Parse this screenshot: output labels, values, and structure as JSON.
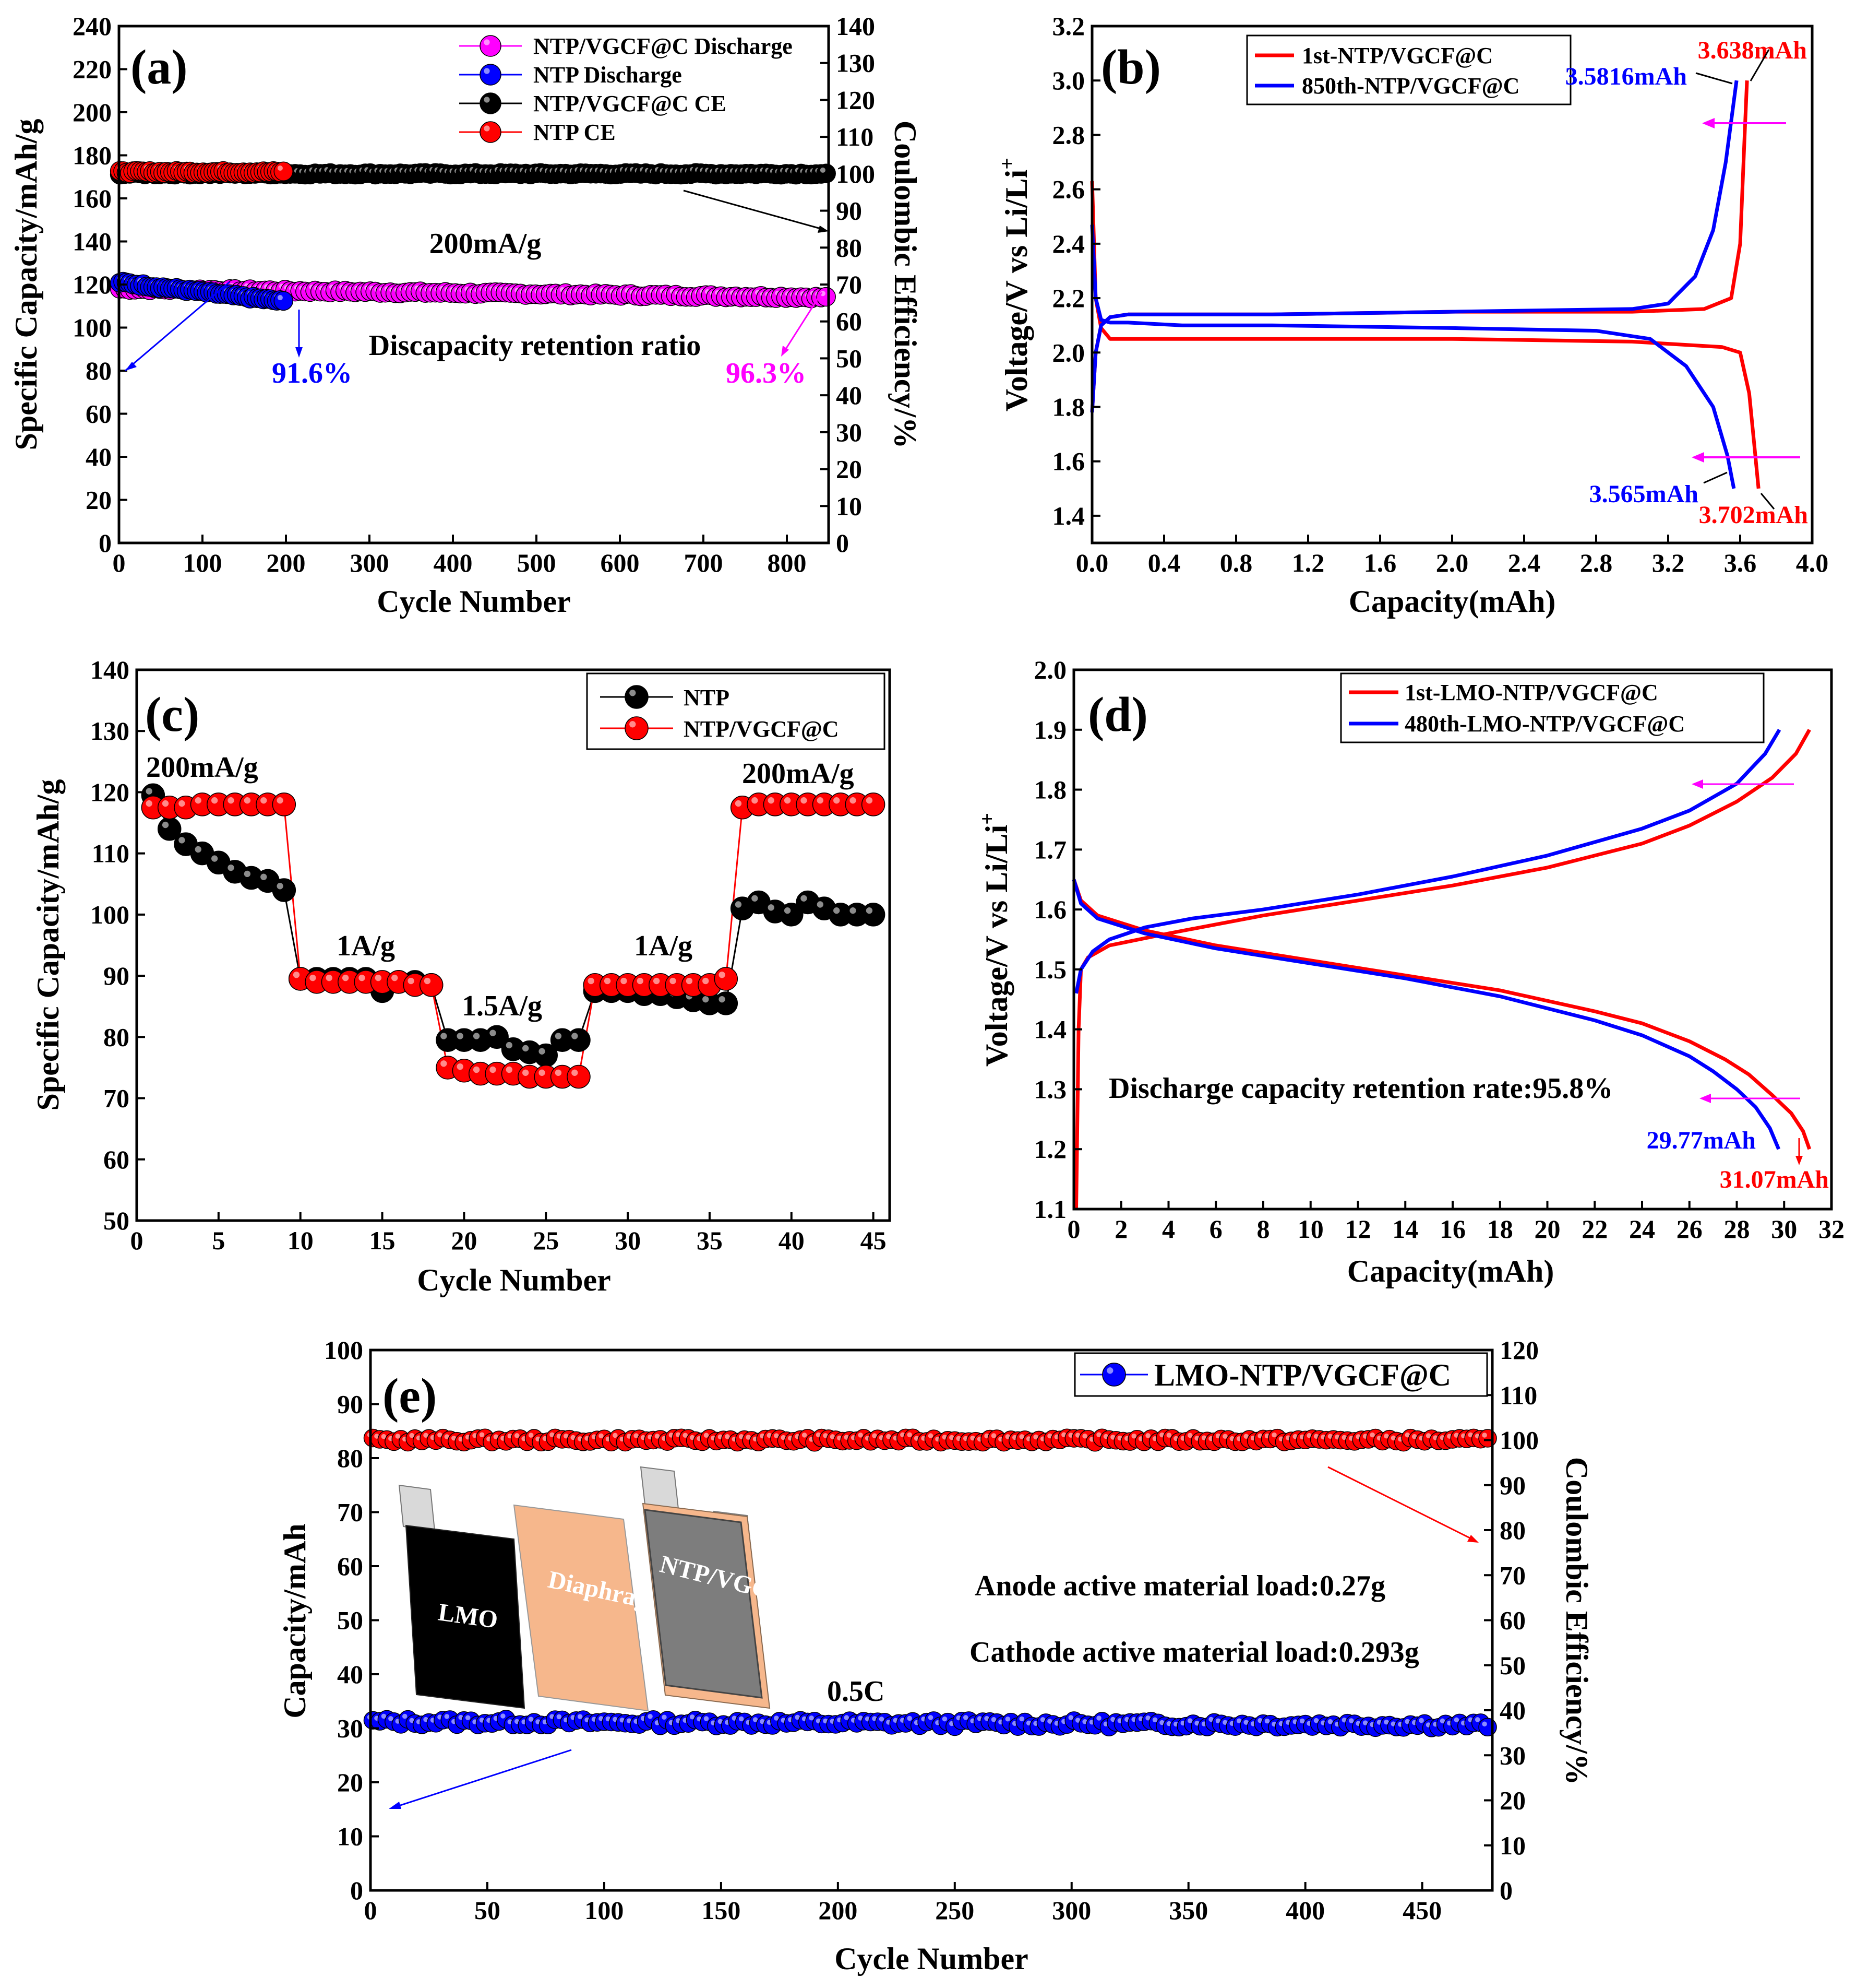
{
  "colors": {
    "red": "#ff0000",
    "blue": "#0000ff",
    "magenta": "#ff00ff",
    "black": "#000000",
    "pink": "#ff66cc",
    "diaphragm": "#f6b78c",
    "gray": "#7d7d7d"
  },
  "chart_data": [
    {
      "id": "a",
      "type": "scatter",
      "panel_label": "(a)",
      "xlabel": "Cycle Number",
      "ylabel": "Specific Capacity/mAh/g",
      "y2label": "Coulombic Efficiency/%",
      "xlim": [
        0,
        850
      ],
      "ylim": [
        0,
        240
      ],
      "y2lim": [
        0,
        140
      ],
      "xticks": [
        0,
        100,
        200,
        300,
        400,
        500,
        600,
        700,
        800
      ],
      "yticks": [
        0,
        20,
        40,
        60,
        80,
        100,
        120,
        140,
        160,
        180,
        200,
        220,
        240
      ],
      "y2ticks": [
        0,
        10,
        20,
        30,
        40,
        50,
        60,
        70,
        80,
        90,
        100,
        110,
        120,
        130,
        140
      ],
      "legend": {
        "placement": "top-right"
      },
      "series": [
        {
          "name": "NTP/VGCF@C Discharge",
          "axis": "left",
          "x": [
            1,
            850
          ],
          "y": [
            118,
            114
          ],
          "color": "magenta"
        },
        {
          "name": "NTP Discharge",
          "axis": "left",
          "x": [
            1,
            200
          ],
          "y": [
            121,
            112
          ],
          "color": "blue"
        },
        {
          "name": "NTP/VGCF@C CE",
          "axis": "right",
          "x": [
            1,
            850
          ],
          "y": [
            100,
            100
          ],
          "color": "black"
        },
        {
          "name": "NTP CE",
          "axis": "right",
          "x": [
            1,
            200
          ],
          "y": [
            100.5,
            100.5
          ],
          "color": "red"
        }
      ],
      "annotations": {
        "rate": "200mA/g",
        "retention": "Discapacity retention ratio",
        "ntp_retention": "91.6%",
        "vgcf_retention": "96.3%"
      }
    },
    {
      "id": "b",
      "type": "line",
      "panel_label": "(b)",
      "xlabel": "Capacity(mAh)",
      "ylabel": "Voltage/V vs Li/Li",
      "ylabel_sup": "+",
      "xlim": [
        0,
        4.0
      ],
      "ylim": [
        1.3,
        3.2
      ],
      "xticks": [
        0.0,
        0.4,
        0.8,
        1.2,
        1.6,
        2.0,
        2.4,
        2.8,
        3.2,
        3.6,
        4.0
      ],
      "yticks": [
        1.4,
        1.6,
        1.8,
        2.0,
        2.2,
        2.4,
        2.6,
        2.8,
        3.0,
        3.2
      ],
      "legend": {
        "placement": "top-left"
      },
      "series": [
        {
          "name": "1st-NTP/VGCF@C",
          "color": "red",
          "charge": {
            "x": [
              0,
              0.02,
              0.05,
              0.1,
              0.2,
              0.5,
              1.0,
              2.0,
              3.0,
              3.4,
              3.55,
              3.6,
              3.625,
              3.638
            ],
            "y": [
              1.78,
              2.0,
              2.1,
              2.13,
              2.14,
              2.14,
              2.14,
              2.15,
              2.15,
              2.16,
              2.2,
              2.4,
              2.8,
              3.0
            ]
          },
          "discharge": {
            "x": [
              0,
              0.02,
              0.05,
              0.1,
              0.2,
              0.5,
              1.0,
              2.0,
              3.0,
              3.5,
              3.6,
              3.65,
              3.68,
              3.702
            ],
            "y": [
              2.63,
              2.2,
              2.09,
              2.05,
              2.05,
              2.05,
              2.05,
              2.05,
              2.04,
              2.02,
              2.0,
              1.85,
              1.65,
              1.5
            ]
          }
        },
        {
          "name": "850th-NTP/VGCF@C",
          "color": "blue",
          "charge": {
            "x": [
              0,
              0.02,
              0.05,
              0.1,
              0.2,
              0.5,
              1.0,
              2.0,
              3.0,
              3.2,
              3.35,
              3.45,
              3.52,
              3.58
            ],
            "y": [
              1.78,
              2.0,
              2.1,
              2.13,
              2.14,
              2.14,
              2.14,
              2.15,
              2.16,
              2.18,
              2.28,
              2.45,
              2.7,
              3.0
            ]
          },
          "discharge": {
            "x": [
              0,
              0.02,
              0.05,
              0.1,
              0.2,
              0.5,
              1.0,
              2.0,
              2.8,
              3.1,
              3.3,
              3.45,
              3.53,
              3.565
            ],
            "y": [
              2.47,
              2.2,
              2.12,
              2.11,
              2.11,
              2.1,
              2.1,
              2.09,
              2.08,
              2.05,
              1.95,
              1.8,
              1.62,
              1.5
            ]
          }
        }
      ],
      "annotations": {
        "c1": "3.638mAh",
        "c850": "3.5816mAh",
        "d850": "3.565mAh",
        "d1": "3.702mAh"
      }
    },
    {
      "id": "c",
      "type": "scatter",
      "panel_label": "(c)",
      "xlabel": "Cycle Number",
      "ylabel": "Specific Capacity/mAh/g",
      "xlim": [
        0,
        46
      ],
      "ylim": [
        50,
        140
      ],
      "xticks": [
        0,
        5,
        10,
        15,
        20,
        25,
        30,
        35,
        40,
        45
      ],
      "yticks": [
        50,
        60,
        70,
        80,
        90,
        100,
        110,
        120,
        130,
        140
      ],
      "legend": {
        "placement": "top-right"
      },
      "series": [
        {
          "name": "NTP",
          "color": "black",
          "x": [
            1,
            2,
            3,
            4,
            5,
            6,
            7,
            8,
            9,
            10,
            11,
            12,
            13,
            14,
            15,
            16,
            17,
            18,
            19,
            20,
            21,
            22,
            23,
            24,
            25,
            26,
            27,
            28,
            29,
            30,
            31,
            32,
            33,
            34,
            35,
            36,
            37,
            38,
            39,
            40,
            41,
            42,
            43,
            44,
            45
          ],
          "y": [
            119.5,
            114,
            111.5,
            110,
            108.5,
            107,
            106,
            105.5,
            104,
            89.5,
            89.5,
            89.5,
            89.5,
            89.5,
            87.5,
            89,
            89,
            88.5,
            79.5,
            79.5,
            79.5,
            80,
            78,
            77.5,
            77,
            79.5,
            79.5,
            87.5,
            87.5,
            87.5,
            87,
            87,
            86.5,
            86,
            85.5,
            85.5,
            101,
            102,
            100.5,
            100,
            102,
            101,
            100,
            100,
            100
          ]
        },
        {
          "name": "NTP/VGCF@C",
          "color": "red",
          "x": [
            1,
            2,
            3,
            4,
            5,
            6,
            7,
            8,
            9,
            10,
            11,
            12,
            13,
            14,
            15,
            16,
            17,
            18,
            19,
            20,
            21,
            22,
            23,
            24,
            25,
            26,
            27,
            28,
            29,
            30,
            31,
            32,
            33,
            34,
            35,
            36,
            37,
            38,
            39,
            40,
            41,
            42,
            43,
            44,
            45
          ],
          "y": [
            117.5,
            117.5,
            117.5,
            118,
            118,
            118,
            118,
            118,
            118,
            89.5,
            89,
            89,
            89,
            89,
            89,
            89,
            88.5,
            88.5,
            75,
            74.5,
            74,
            74,
            74,
            73.5,
            73.5,
            73.5,
            73.5,
            88.5,
            88.5,
            88.5,
            88.5,
            88.5,
            88.5,
            88.5,
            88.5,
            89.5,
            117.5,
            118,
            118,
            118,
            118,
            118,
            118,
            118,
            118
          ]
        }
      ],
      "annotations": {
        "r1": "200mA/g",
        "r2": "1A/g",
        "r3": "1.5A/g",
        "r4": "1A/g",
        "r5": "200mA/g"
      }
    },
    {
      "id": "d",
      "type": "line",
      "panel_label": "(d)",
      "xlabel": "Capacity(mAh)",
      "ylabel": "Voltage/V vs Li/Li",
      "ylabel_sup": "+",
      "xlim": [
        0,
        32
      ],
      "ylim": [
        1.1,
        2.0
      ],
      "xticks": [
        0,
        2,
        4,
        6,
        8,
        10,
        12,
        14,
        16,
        18,
        20,
        22,
        24,
        26,
        28,
        30,
        32
      ],
      "yticks": [
        1.1,
        1.2,
        1.3,
        1.4,
        1.5,
        1.6,
        1.7,
        1.8,
        1.9,
        2.0
      ],
      "legend": {
        "placement": "top-right"
      },
      "series": [
        {
          "name": "1st-LMO-NTP/VGCF@C",
          "color": "red",
          "charge": {
            "x": [
              0.1,
              0.2,
              0.3,
              0.6,
              1.5,
              4,
              8,
              12,
              16,
              20,
              24,
              26,
              28,
              29.5,
              30.5,
              31.07
            ],
            "y": [
              1.1,
              1.4,
              1.5,
              1.52,
              1.54,
              1.56,
              1.59,
              1.615,
              1.64,
              1.67,
              1.71,
              1.74,
              1.78,
              1.82,
              1.86,
              1.9
            ]
          },
          "discharge": {
            "x": [
              0,
              0.3,
              1,
              3,
              6,
              10,
              14,
              18,
              22,
              24,
              26,
              27.5,
              28.5,
              29.5,
              30.3,
              30.8,
              31.07
            ],
            "y": [
              1.65,
              1.615,
              1.59,
              1.565,
              1.54,
              1.515,
              1.49,
              1.465,
              1.43,
              1.41,
              1.38,
              1.35,
              1.325,
              1.29,
              1.26,
              1.23,
              1.2
            ]
          }
        },
        {
          "name": "480th-LMO-NTP/VGCF@C",
          "color": "blue",
          "charge": {
            "x": [
              0.1,
              0.3,
              0.8,
              1.5,
              3,
              5,
              8,
              12,
              16,
              20,
              24,
              26,
              28,
              29.2,
              29.8
            ],
            "y": [
              1.46,
              1.5,
              1.53,
              1.55,
              1.57,
              1.585,
              1.6,
              1.625,
              1.655,
              1.69,
              1.735,
              1.765,
              1.81,
              1.86,
              1.9
            ]
          },
          "discharge": {
            "x": [
              0,
              0.3,
              1,
              3,
              6,
              10,
              14,
              18,
              22,
              24,
              26,
              27,
              28,
              28.8,
              29.4,
              29.77
            ],
            "y": [
              1.65,
              1.61,
              1.585,
              1.56,
              1.535,
              1.51,
              1.485,
              1.455,
              1.415,
              1.39,
              1.355,
              1.33,
              1.3,
              1.27,
              1.235,
              1.2
            ]
          }
        }
      ],
      "annotations": {
        "retention": "Discharge capacity retention rate:95.8%",
        "d480": "29.77mAh",
        "d1": "31.07mAh"
      }
    },
    {
      "id": "e",
      "type": "scatter",
      "panel_label": "(e)",
      "xlabel": "Cycle Number",
      "ylabel": "Capacity/mAh",
      "y2label": "Coulombic Efficiency/%",
      "xlim": [
        0,
        480
      ],
      "ylim": [
        0,
        100
      ],
      "y2lim": [
        0,
        120
      ],
      "xticks": [
        0,
        50,
        100,
        150,
        200,
        250,
        300,
        350,
        400,
        450
      ],
      "yticks": [
        0,
        10,
        20,
        30,
        40,
        50,
        60,
        70,
        80,
        90,
        100
      ],
      "y2ticks": [
        0,
        10,
        20,
        30,
        40,
        50,
        60,
        70,
        80,
        90,
        100,
        110,
        120
      ],
      "legend": {
        "placement": "top-right"
      },
      "series": [
        {
          "name": "LMO-NTP/VGCF@C",
          "axis": "left",
          "color": "blue",
          "x": [
            1,
            480
          ],
          "y": [
            31.2,
            30.6
          ]
        },
        {
          "name": "Coulombic Efficiency",
          "axis": "right",
          "color": "red",
          "x": [
            1,
            480
          ],
          "y": [
            100,
            100
          ]
        }
      ],
      "annotations": {
        "rate": "0.5C",
        "anode": "Anode active material load:0.27g",
        "cathode": "Cathode active material load:0.293g",
        "inset_lmo": "LMO",
        "inset_diaphragm": "Diaphragm",
        "inset_ntp": "NTP/VGCF@C"
      }
    }
  ]
}
